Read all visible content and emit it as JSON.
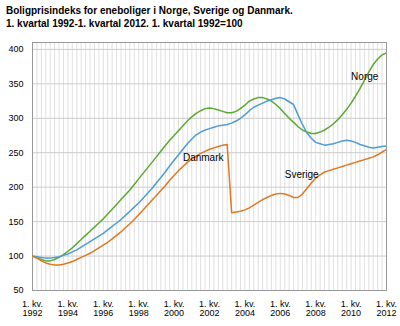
{
  "chart_data": {
    "type": "line",
    "title": "Boligprisindeks for eneboliger i Norge, Sverige og Danmark.",
    "subtitle": "1. kvartal 1992-1. kvartal 2012. 1. kvartal 1992=100",
    "categories": [
      "1. kv.\n1992",
      null,
      null,
      null,
      null,
      null,
      null,
      null,
      "1. kv.\n1994",
      null,
      null,
      null,
      null,
      null,
      null,
      null,
      "1. kv.\n1996",
      null,
      null,
      null,
      null,
      null,
      null,
      null,
      "1. kv.\n1998",
      null,
      null,
      null,
      null,
      null,
      null,
      null,
      "1. kv.\n2000",
      null,
      null,
      null,
      null,
      null,
      null,
      null,
      "1. kv.\n2002",
      null,
      null,
      null,
      null,
      null,
      null,
      null,
      "1. kv.\n2004",
      null,
      null,
      null,
      null,
      null,
      null,
      null,
      "1. kv.\n2006",
      null,
      null,
      null,
      null,
      null,
      null,
      null,
      "1. kv.\n2008",
      null,
      null,
      null,
      null,
      null,
      null,
      null,
      "1. kv.\n2010",
      null,
      null,
      null,
      null,
      null,
      null,
      null,
      "1. kv.\n2012"
    ],
    "series": [
      {
        "name": "Norge",
        "color": "#5aaa32",
        "values": [
          100,
          97,
          95,
          93,
          93,
          95,
          98,
          102,
          107,
          112,
          118,
          124,
          130,
          136,
          142,
          148,
          154,
          161,
          168,
          175,
          182,
          189,
          196,
          204,
          212,
          220,
          228,
          236,
          244,
          252,
          260,
          268,
          275,
          282,
          289,
          296,
          302,
          307,
          311,
          314,
          315,
          314,
          312,
          310,
          308,
          308,
          310,
          314,
          319,
          325,
          328,
          330,
          330,
          328,
          325,
          320,
          314,
          307,
          300,
          294,
          288,
          283,
          280,
          278,
          278,
          280,
          283,
          287,
          292,
          298,
          305,
          313,
          322,
          332,
          343,
          355,
          367,
          378,
          386,
          392,
          395
        ]
      },
      {
        "name": "Danmark",
        "color": "#4d9cd4",
        "values": [
          100,
          99,
          98,
          97,
          97,
          98,
          99,
          101,
          103,
          106,
          109,
          113,
          117,
          121,
          125,
          129,
          133,
          138,
          143,
          148,
          153,
          159,
          165,
          171,
          177,
          184,
          191,
          198,
          206,
          214,
          222,
          231,
          239,
          247,
          255,
          263,
          270,
          276,
          280,
          283,
          285,
          287,
          289,
          290,
          291,
          293,
          296,
          300,
          305,
          311,
          316,
          319,
          322,
          325,
          327,
          329,
          330,
          328,
          324,
          320,
          305,
          291,
          279,
          271,
          265,
          263,
          261,
          262,
          263,
          265,
          267,
          268,
          267,
          265,
          262,
          260,
          258,
          257,
          258,
          259,
          260
        ]
      },
      {
        "name": "Sverige",
        "color": "#e07820",
        "values": [
          100,
          97,
          93,
          90,
          88,
          87,
          87,
          88,
          90,
          92,
          95,
          98,
          101,
          104,
          108,
          112,
          116,
          120,
          125,
          130,
          135,
          141,
          147,
          153,
          160,
          167,
          174,
          181,
          188,
          195,
          202,
          210,
          217,
          224,
          230,
          236,
          241,
          245,
          249,
          252,
          255,
          257,
          259,
          261,
          262,
          163,
          164,
          165,
          167,
          170,
          174,
          178,
          182,
          185,
          188,
          190,
          191,
          190,
          188,
          185,
          185,
          190,
          198,
          206,
          213,
          218,
          222,
          224,
          226,
          228,
          230,
          232,
          234,
          236,
          238,
          240,
          242,
          244,
          247,
          251,
          255
        ]
      }
    ],
    "annotations": [
      {
        "text": "Norge",
        "x": 72,
        "y": 360
      },
      {
        "text": "Danmark",
        "x": 34,
        "y": 242
      },
      {
        "text": "Sverige",
        "x": 57,
        "y": 218
      }
    ],
    "ylim": [
      50,
      410
    ],
    "yticks": [
      50,
      100,
      150,
      200,
      250,
      300,
      350,
      400
    ],
    "grid": true
  }
}
